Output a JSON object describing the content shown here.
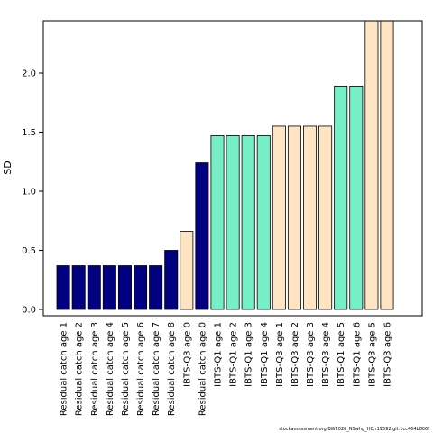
{
  "chart_data": {
    "type": "bar",
    "ylabel": "SD",
    "ylim": [
      0,
      2.45
    ],
    "yticks": [
      "0.0",
      "0.5",
      "1.0",
      "1.5",
      "2.0"
    ],
    "categories": [
      "Residual catch age 1",
      "Residual catch age 2",
      "Residual catch age 3",
      "Residual catch age 4",
      "Residual catch age 5",
      "Residual catch age 6",
      "Residual catch age 7",
      "Residual catch age 8",
      "IBTS-Q3 age 0",
      "Residual catch age 0",
      "IBTS-Q1 age 1",
      "IBTS-Q1 age 2",
      "IBTS-Q1 age 3",
      "IBTS-Q1 age 4",
      "IBTS-Q3 age 1",
      "IBTS-Q3 age 2",
      "IBTS-Q3 age 3",
      "IBTS-Q3 age 4",
      "IBTS-Q1 age 5",
      "IBTS-Q1 age 6",
      "IBTS-Q3 age 5",
      "IBTS-Q3 age 6"
    ],
    "values": [
      0.37,
      0.37,
      0.37,
      0.37,
      0.37,
      0.37,
      0.37,
      0.5,
      0.66,
      1.24,
      1.47,
      1.47,
      1.47,
      1.47,
      1.55,
      1.55,
      1.55,
      1.55,
      1.89,
      1.89,
      2.45,
      2.45
    ],
    "bar_colors": [
      "#000080",
      "#000080",
      "#000080",
      "#000080",
      "#000080",
      "#000080",
      "#000080",
      "#000080",
      "#ffe4c4",
      "#000080",
      "#76eec6",
      "#76eec6",
      "#76eec6",
      "#76eec6",
      "#ffe4c4",
      "#ffe4c4",
      "#ffe4c4",
      "#ffe4c4",
      "#76eec6",
      "#76eec6",
      "#ffe4c4",
      "#ffe4c4"
    ],
    "grid": false,
    "legend": "none"
  },
  "footer": "stockassessment.org,BW2026_NSwhg_HC,r19592,git:1cc464b806f"
}
